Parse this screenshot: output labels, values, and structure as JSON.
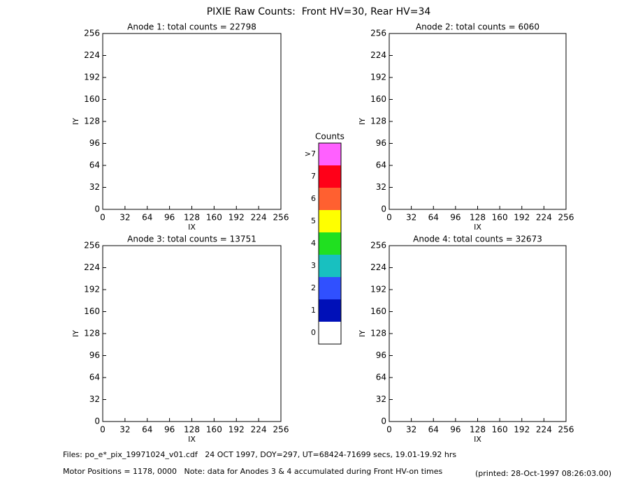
{
  "title": "PIXIE Raw Counts:  Front HV=30, Rear HV=34",
  "chart_data": [
    {
      "type": "heatmap",
      "title": "Anode 1: total counts = 22798",
      "xlabel": "IX",
      "ylabel": "IY",
      "xlim": [
        0,
        256
      ],
      "ylim": [
        0,
        256
      ],
      "xticks": [
        0,
        32,
        64,
        96,
        128,
        160,
        192,
        224,
        256
      ],
      "yticks": [
        0,
        32,
        64,
        96,
        128,
        160,
        192,
        224,
        256
      ]
    },
    {
      "type": "heatmap",
      "title": "Anode 2: total counts = 6060",
      "xlabel": "IX",
      "ylabel": "IY",
      "xlim": [
        0,
        256
      ],
      "ylim": [
        0,
        256
      ],
      "xticks": [
        0,
        32,
        64,
        96,
        128,
        160,
        192,
        224,
        256
      ],
      "yticks": [
        0,
        32,
        64,
        96,
        128,
        160,
        192,
        224,
        256
      ]
    },
    {
      "type": "heatmap",
      "title": "Anode 3: total counts = 13751",
      "xlabel": "IX",
      "ylabel": "IY",
      "xlim": [
        0,
        256
      ],
      "ylim": [
        0,
        256
      ],
      "xticks": [
        0,
        32,
        64,
        96,
        128,
        160,
        192,
        224,
        256
      ],
      "yticks": [
        0,
        32,
        64,
        96,
        128,
        160,
        192,
        224,
        256
      ]
    },
    {
      "type": "heatmap",
      "title": "Anode 4: total counts = 32673",
      "xlabel": "IX",
      "ylabel": "IY",
      "xlim": [
        0,
        256
      ],
      "ylim": [
        0,
        256
      ],
      "xticks": [
        0,
        32,
        64,
        96,
        128,
        160,
        192,
        224,
        256
      ],
      "yticks": [
        0,
        32,
        64,
        96,
        128,
        160,
        192,
        224,
        256
      ]
    },
    {
      "type": "colorbar",
      "title": "Counts",
      "categories": [
        "0",
        "1",
        "2",
        "3",
        "4",
        "5",
        "6",
        "7",
        ">7"
      ],
      "colors": [
        "#ffffff",
        "#0010b8",
        "#3050ff",
        "#18c0c0",
        "#20e020",
        "#ffff00",
        "#ff6030",
        "#ff0018",
        "#ff60ff"
      ]
    }
  ],
  "footer": {
    "files": "Files: po_e*_pix_19971024_v01.cdf   24 OCT 1997, DOY=297, UT=68424-71699 secs, 19.01-19.92 hrs",
    "motor": "Motor Positions = 1178, 0000   Note: data for Anodes 3 & 4 accumulated during Front HV-on times",
    "printed": "(printed: 28-Oct-1997 08:26:03.00)"
  }
}
